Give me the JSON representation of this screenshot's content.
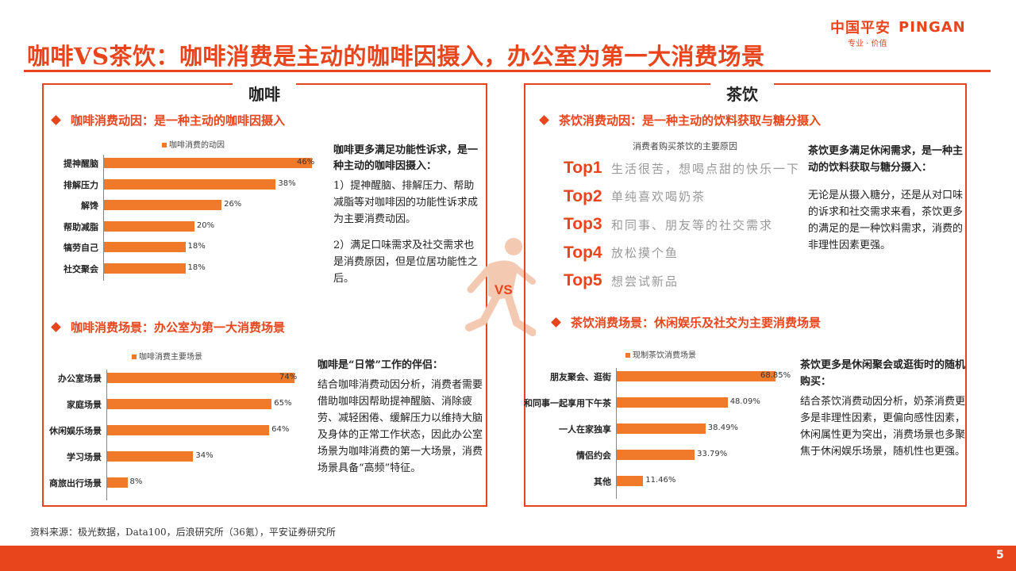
{
  "header": {
    "brand_cn": "中国平安",
    "brand_en": "PINGAN",
    "slogan": "专业 · 价值",
    "title": "咖啡VS茶饮：咖啡消费是主动的咖啡因摄入，办公室为第一大消费场景"
  },
  "coffee": {
    "heading": "咖啡",
    "motive_title": "咖啡消费动因：是一种主动的咖啡因摄入",
    "motive_legend": "咖啡消费的动因",
    "motive_chart": {
      "type": "bar",
      "categories": [
        "提神醒脑",
        "排解压力",
        "解馋",
        "帮助减脂",
        "犒劳自己",
        "社交聚会"
      ],
      "values": [
        46,
        38,
        26,
        20,
        18,
        18
      ],
      "labels": [
        "46%",
        "38%",
        "26%",
        "20%",
        "18%",
        "18%"
      ],
      "max": 46
    },
    "motive_text_title": "咖啡更多满足功能性诉求，是一种主动的咖啡因摄入：",
    "motive_text_p1": "1）提神醒脑、排解压力、帮助减脂等对咖啡因的功能性诉求成为主要消费动因。",
    "motive_text_p2": "2）满足口味需求及社交需求也是消费原因，但是位居功能性之后。",
    "scene_title": "咖啡消费场景：办公室为第一大消费场景",
    "scene_legend": "咖啡消费主要场景",
    "scene_chart": {
      "type": "bar",
      "categories": [
        "办公室场景",
        "家庭场景",
        "休闲娱乐场景",
        "学习场景",
        "商旅出行场景"
      ],
      "values": [
        74,
        65,
        64,
        34,
        8
      ],
      "labels": [
        "74%",
        "65%",
        "64%",
        "34%",
        "8%"
      ],
      "max": 74
    },
    "scene_text_title": "咖啡是“日常”工作的伴侣：",
    "scene_text_body": "结合咖啡消费动因分析，消费者需要借助咖啡因帮助提神醒脑、消除疲劳、减轻困倦、缓解压力以维持大脑及身体的正常工作状态，因此办公室场景为咖啡消费的第一大场景，消费场景具备“高频”特征。"
  },
  "tea": {
    "heading": "茶饮",
    "motive_title": "茶饮消费动因：是一种主动的饮料获取与糖分摄入",
    "reasons_title": "消费者购买茶饮的主要原因",
    "reasons": [
      {
        "tag": "Top1",
        "desc": "生活很苦，想喝点甜的快乐一下"
      },
      {
        "tag": "Top2",
        "desc": "单纯喜欢喝奶茶"
      },
      {
        "tag": "Top3",
        "desc": "和同事、朋友等的社交需求"
      },
      {
        "tag": "Top4",
        "desc": "放松摸个鱼"
      },
      {
        "tag": "Top5",
        "desc": "想尝试新品"
      }
    ],
    "motive_text_title": "茶饮更多满足休闲需求，是一种主动的饮料获取与糖分摄入：",
    "motive_text_body": "无论是从摄入糖分，还是从对口味的诉求和社交需求来看，茶饮更多的满足的是一种饮料需求，消费的非理性因素更强。",
    "scene_title": "茶饮消费场景：休闲娱乐及社交为主要消费场景",
    "scene_legend": "现制茶饮消费场景",
    "scene_chart": {
      "type": "bar",
      "categories": [
        "朋友聚会、逛街",
        "和同事一起享用下午茶",
        "一人在家独享",
        "情侣约会",
        "其他"
      ],
      "values": [
        68.85,
        48.09,
        38.49,
        33.79,
        11.46
      ],
      "labels": [
        "68.85%",
        "48.09%",
        "38.49%",
        "33.79%",
        "11.46%"
      ],
      "max": 68.85
    },
    "scene_text_title": "茶饮更多是休闲聚会或逛街时的随机购买：",
    "scene_text_body": "结合茶饮消费动因分析，奶茶消费更多是非理性因素，更偏向感性因素，休闲属性更为突出，消费场景也多聚焦于休闲娱乐场景，随机性也更强。"
  },
  "vs_label": "VS",
  "footer": {
    "source": "资料来源：极光数据，Data100，后浪研究所（36氪），平安证券研究所",
    "page": "5"
  },
  "colors": {
    "accent": "#e8451c",
    "bar": "#f07a2a"
  }
}
